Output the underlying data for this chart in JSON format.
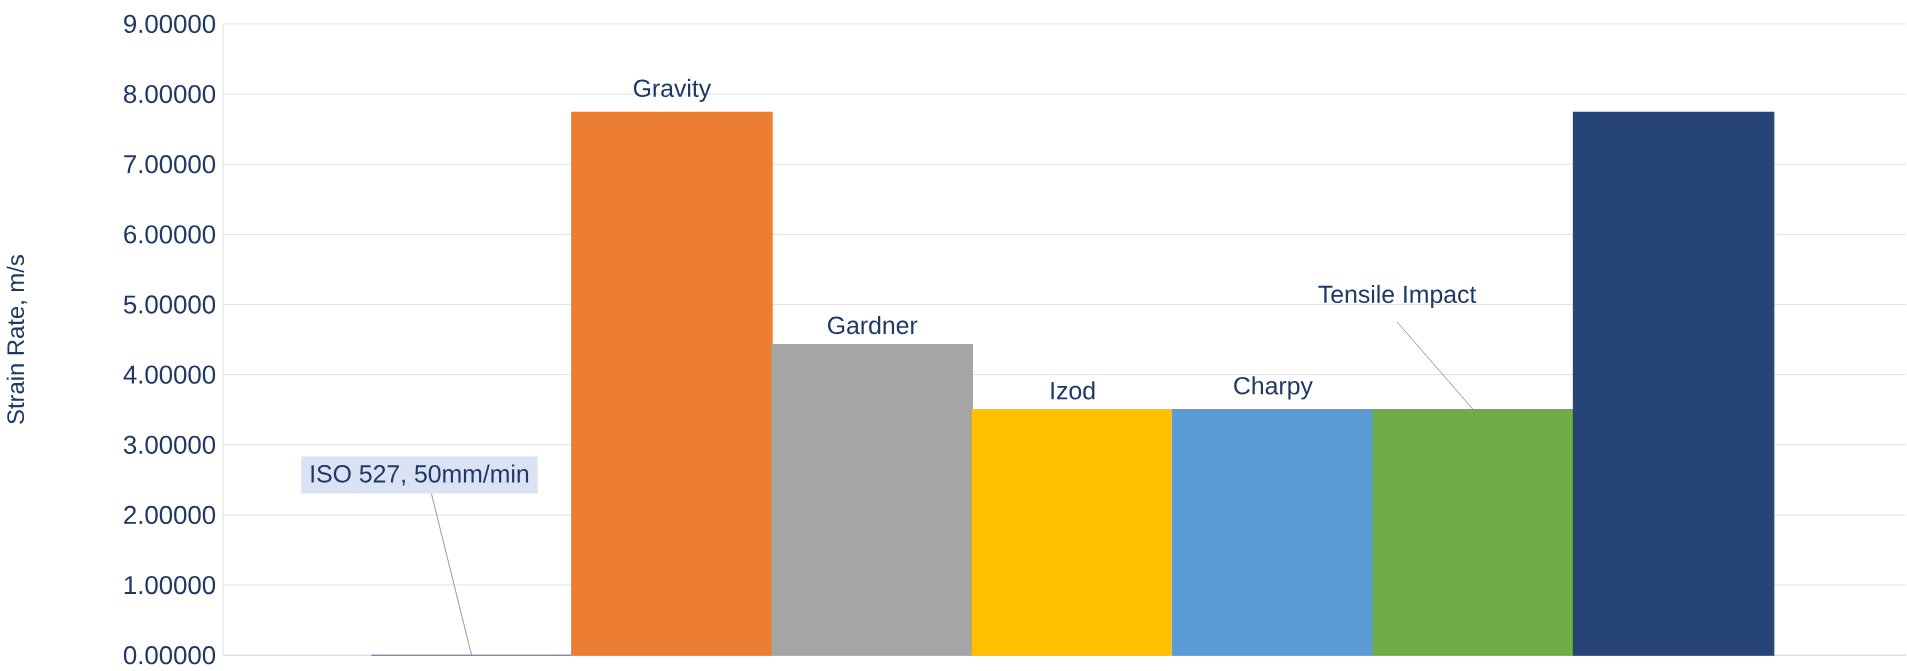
{
  "chart_data": {
    "type": "bar",
    "ylabel": "Strain Rate, m/s",
    "categories": [
      "ISO 527, 50mm/min",
      "Gravity",
      "Gardner",
      "Izod",
      "Charpy",
      "Tensile Impact",
      null
    ],
    "values": [
      0,
      7.74,
      4.43,
      3.5,
      3.5,
      3.5,
      7.74
    ],
    "colors": [
      "#4472c4",
      "#ed7d31",
      "#a5a5a5",
      "#ffc000",
      "#5b9bd5",
      "#70ad47",
      "#264478"
    ],
    "ylim": [
      0,
      9
    ],
    "yticks": [
      {
        "value": 0,
        "label": "0.00000"
      },
      {
        "value": 1,
        "label": "1.00000"
      },
      {
        "value": 2,
        "label": "2.00000"
      },
      {
        "value": 3,
        "label": "3.00000"
      },
      {
        "value": 4,
        "label": "4.00000"
      },
      {
        "value": 5,
        "label": "5.00000"
      },
      {
        "value": 6,
        "label": "6.00000"
      },
      {
        "value": 7,
        "label": "7.00000"
      },
      {
        "value": 8,
        "label": "8.00000"
      },
      {
        "value": 9,
        "label": "9.00000"
      }
    ],
    "grid": "y"
  }
}
